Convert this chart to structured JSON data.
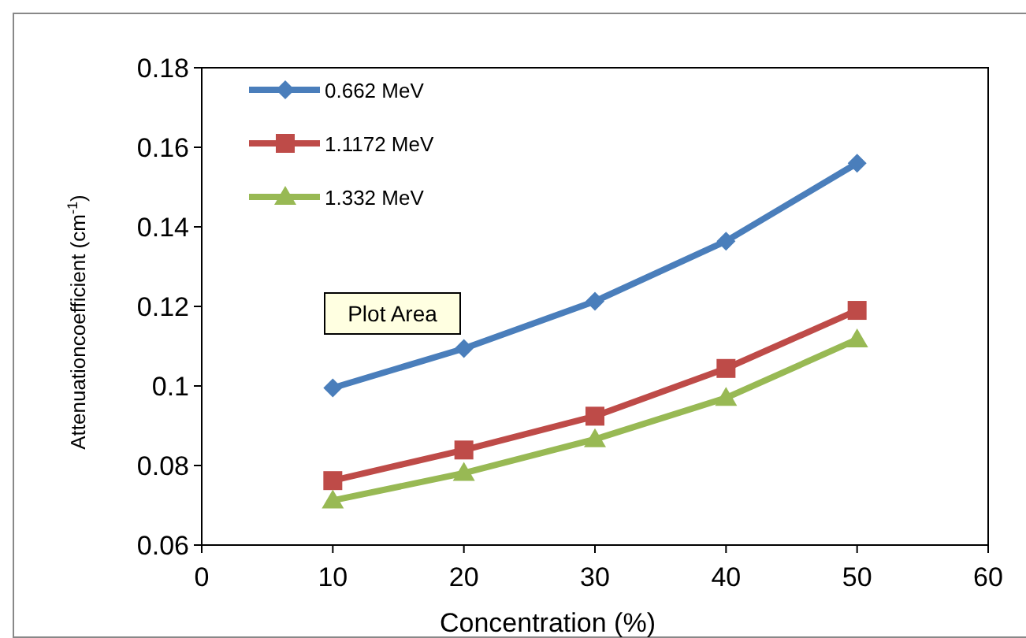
{
  "chart_data": {
    "type": "line",
    "xlabel": "Concentration (%)",
    "ylabel": "Attenuationcoefficient  (cm$^{-1}$)",
    "x": [
      10,
      20,
      30,
      40,
      50
    ],
    "series": [
      {
        "name": "0.662 MeV",
        "color": "#4a7ebb",
        "marker": "diamond",
        "values": [
          0.0995,
          0.1094,
          0.1213,
          0.1364,
          0.156
        ]
      },
      {
        "name": "1.1172 MeV",
        "color": "#be4b48",
        "marker": "square",
        "values": [
          0.0762,
          0.0839,
          0.0924,
          0.1044,
          0.119
        ]
      },
      {
        "name": "1.332 MeV",
        "color": "#98b954",
        "marker": "triangle",
        "values": [
          0.0712,
          0.0781,
          0.0866,
          0.097,
          0.1117
        ]
      }
    ],
    "xlim": [
      0,
      60
    ],
    "xticks": [
      0,
      10,
      20,
      30,
      40,
      50,
      60
    ],
    "ylim": [
      0.06,
      0.18
    ],
    "yticks": [
      0.06,
      0.08,
      0.1,
      0.12,
      0.14,
      0.16,
      0.18
    ],
    "grid": false,
    "legend": "top left",
    "line_style": "solid",
    "annotations": [
      "Plot Area"
    ]
  }
}
